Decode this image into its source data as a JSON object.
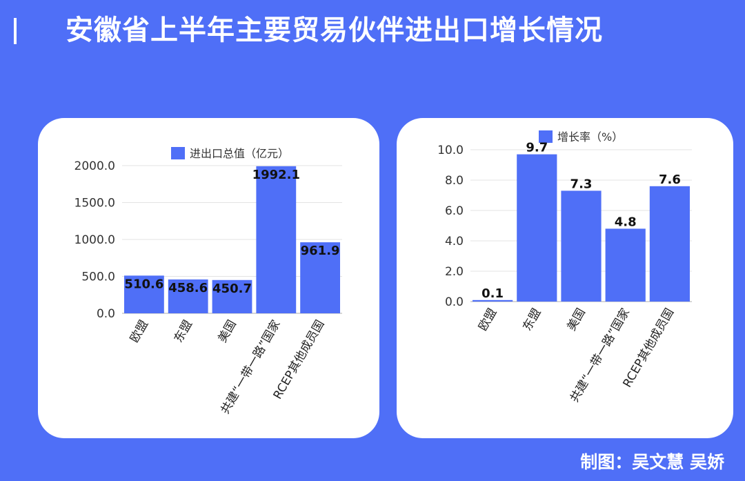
{
  "page": {
    "title": "安徽省上半年主要贸易伙伴进出口增长情况",
    "credit": "制图：吴文慧 吴娇",
    "background_color": "#4f6ff7"
  },
  "chart_data": [
    {
      "type": "bar",
      "categories": [
        "欧盟",
        "东盟",
        "美国",
        "共建“一带一路”国家",
        "RCEP其他成员国"
      ],
      "series": [
        {
          "name": "进出口总值（亿元）",
          "values": [
            510.6,
            458.6,
            450.7,
            1992.1,
            961.9
          ]
        }
      ],
      "tick_labels": [
        "0.0",
        "500.0",
        "1000.0",
        "1500.0",
        "2000.0"
      ],
      "data_labels": [
        "510.6",
        "458.6",
        "450.7",
        "1992.1",
        "961.9"
      ],
      "ylim": [
        0,
        2000
      ],
      "grid": true,
      "legend": "top-center",
      "bar_color": "#4f6ff7"
    },
    {
      "type": "bar",
      "categories": [
        "欧盟",
        "东盟",
        "美国",
        "共建“一带一路”国家",
        "RCEP其他成员国"
      ],
      "series": [
        {
          "name": "增长率（%）",
          "values": [
            0.1,
            9.7,
            7.3,
            4.8,
            7.6
          ]
        }
      ],
      "tick_labels": [
        "0.0",
        "2.0",
        "4.0",
        "6.0",
        "8.0",
        "10.0"
      ],
      "data_labels": [
        "0.1",
        "9.7",
        "7.3",
        "4.8",
        "7.6"
      ],
      "ylim": [
        0,
        10
      ],
      "grid": true,
      "legend": "top-center",
      "bar_color": "#4f6ff7"
    }
  ]
}
